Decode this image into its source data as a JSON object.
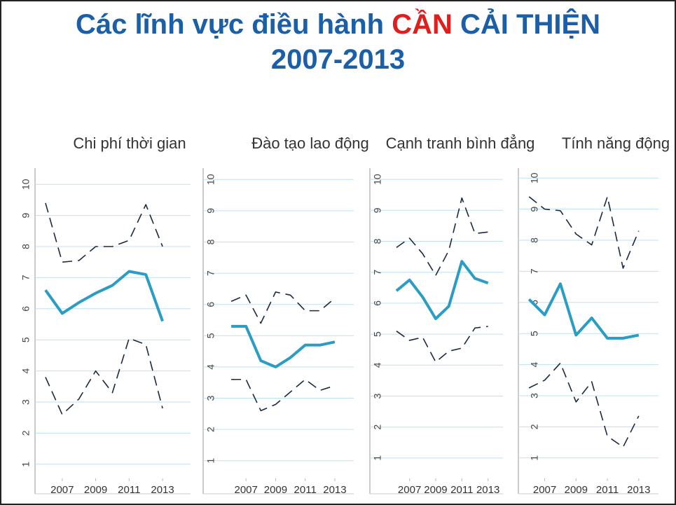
{
  "title": {
    "line1": [
      "Các lĩnh vực điều hành",
      "CẦN",
      "CẢI THIỆN"
    ],
    "line2": "2007-2013"
  },
  "chart_data": [
    {
      "type": "line",
      "title": "Chi phí thời gian",
      "x": [
        2006,
        2007,
        2008,
        2009,
        2010,
        2011,
        2012,
        2013
      ],
      "xlim": [
        2005.5,
        2013.5
      ],
      "xticks": [
        2007,
        2009,
        2011,
        2013
      ],
      "ylim": [
        0.5,
        10.5
      ],
      "yticks": [
        1,
        2,
        3,
        4,
        5,
        6,
        7,
        8,
        9,
        10
      ],
      "grid": true,
      "series": [
        {
          "color": "#1b2a3e",
          "style": "dashed",
          "values": [
            9.4,
            7.5,
            7.55,
            8.0,
            8.0,
            8.2,
            9.35,
            8.0
          ]
        },
        {
          "color": "#2b9cc4",
          "style": "solid",
          "values": [
            6.6,
            5.85,
            6.2,
            6.5,
            6.75,
            7.2,
            7.1,
            5.6
          ]
        },
        {
          "color": "#1b2a3e",
          "style": "dashed",
          "values": [
            3.8,
            2.6,
            3.1,
            4.0,
            3.3,
            5.05,
            4.85,
            2.8
          ]
        }
      ]
    },
    {
      "type": "line",
      "title": "Đào tạo lao động",
      "x": [
        2006,
        2007,
        2008,
        2009,
        2010,
        2011,
        2012,
        2013
      ],
      "xlim": [
        2005.5,
        2013.5
      ],
      "xticks": [
        2007,
        2009,
        2011,
        2013
      ],
      "ylim": [
        0.5,
        10.5
      ],
      "yticks": [
        1,
        2,
        3,
        4,
        5,
        6,
        7,
        8,
        9,
        10
      ],
      "grid": true,
      "series": [
        {
          "color": "#1b2a3e",
          "style": "dashed",
          "values": [
            6.1,
            6.3,
            5.4,
            6.4,
            6.3,
            5.8,
            5.8,
            6.2
          ]
        },
        {
          "color": "#2b9cc4",
          "style": "solid",
          "values": [
            5.3,
            5.3,
            4.2,
            4.0,
            4.3,
            4.7,
            4.7,
            4.8
          ]
        },
        {
          "color": "#1b2a3e",
          "style": "dashed",
          "values": [
            3.6,
            3.6,
            2.6,
            2.8,
            3.2,
            3.6,
            3.25,
            3.4
          ]
        }
      ]
    },
    {
      "type": "line",
      "title": "Cạnh tranh bình đẳng",
      "x": [
        2006,
        2007,
        2008,
        2009,
        2010,
        2011,
        2012,
        2013
      ],
      "xlim": [
        2005.5,
        2013.5
      ],
      "xticks": [
        2007,
        2009,
        2011,
        2013
      ],
      "ylim": [
        0.5,
        10.5
      ],
      "yticks": [
        1,
        2,
        3,
        4,
        5,
        6,
        7,
        8,
        9,
        10
      ],
      "grid": true,
      "series": [
        {
          "color": "#1b2a3e",
          "style": "dashed",
          "values": [
            7.8,
            8.1,
            7.6,
            6.9,
            7.7,
            9.4,
            8.25,
            8.3
          ]
        },
        {
          "color": "#2b9cc4",
          "style": "solid",
          "values": [
            6.4,
            6.75,
            6.2,
            5.5,
            5.9,
            7.35,
            6.8,
            6.65
          ]
        },
        {
          "color": "#1b2a3e",
          "style": "dashed",
          "values": [
            5.1,
            4.8,
            4.9,
            4.1,
            4.45,
            4.55,
            5.2,
            5.25
          ]
        }
      ]
    },
    {
      "type": "line",
      "title": "Tính năng động",
      "x": [
        2006,
        2007,
        2008,
        2009,
        2010,
        2011,
        2012,
        2013
      ],
      "xlim": [
        2005.5,
        2013.5
      ],
      "xticks": [
        2007,
        2009,
        2011,
        2013
      ],
      "ylim": [
        0.5,
        10.5
      ],
      "yticks": [
        1,
        2,
        3,
        4,
        5,
        6,
        7,
        8,
        9,
        10
      ],
      "grid": true,
      "series": [
        {
          "color": "#1b2a3e",
          "style": "dashed",
          "values": [
            9.4,
            9.0,
            8.95,
            8.2,
            7.85,
            9.4,
            7.1,
            8.3
          ]
        },
        {
          "color": "#2b9cc4",
          "style": "solid",
          "values": [
            6.1,
            5.6,
            6.6,
            4.95,
            5.5,
            4.85,
            4.85,
            4.95
          ]
        },
        {
          "color": "#1b2a3e",
          "style": "dashed",
          "values": [
            3.25,
            3.5,
            4.05,
            2.8,
            3.45,
            1.7,
            1.35,
            2.35
          ]
        }
      ]
    }
  ]
}
